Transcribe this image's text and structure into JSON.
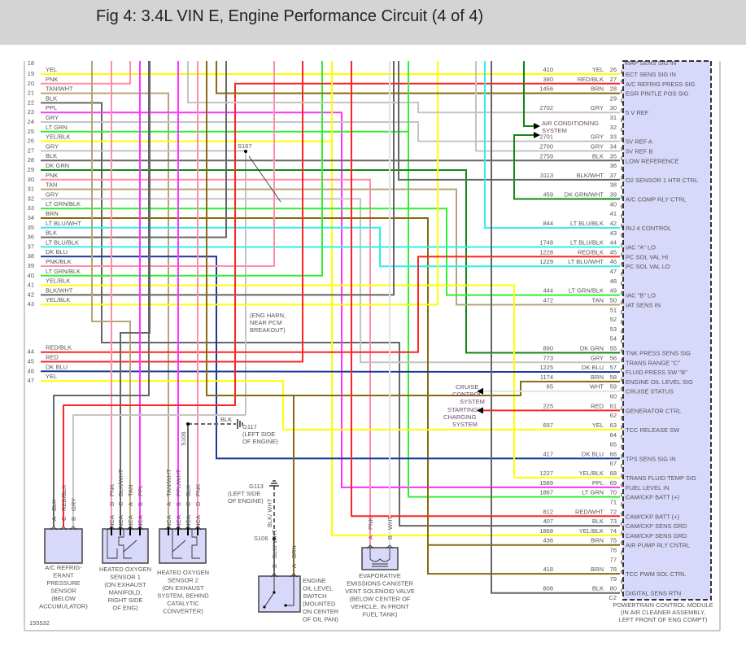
{
  "title": "Fig 4: 3.4L VIN E, Engine Performance Circuit (4 of 4)",
  "figure_id": "155532",
  "wire_colors": {
    "YEL": "#ffff00",
    "PNK": "#ff8fa8",
    "TAN": "#b5a578",
    "BLK": "#666666",
    "PPL": "#ff33ff",
    "GRY": "#c4c4c4",
    "LTGRN": "#33ee33",
    "DKGRN": "#128812",
    "RED": "#ff2424",
    "BRN": "#8a6a10",
    "LTBLU": "#33eeee",
    "DKBLU": "#1a3a9a",
    "WHT": "#e2e2e2"
  },
  "pcm_fill": "#d8d8fa",
  "left_rows_partial": "18",
  "left_rows": [
    {
      "num": "19",
      "label": "YEL"
    },
    {
      "num": "20",
      "label": "PNK"
    },
    {
      "num": "21",
      "label": "TAN/WHT"
    },
    {
      "num": "22",
      "label": "BLK"
    },
    {
      "num": "23",
      "label": "PPL"
    },
    {
      "num": "24",
      "label": "GRY"
    },
    {
      "num": "25",
      "label": "LT GRN"
    },
    {
      "num": "26",
      "label": "YEL/BLK"
    },
    {
      "num": "27",
      "label": "GRY"
    },
    {
      "num": "28",
      "label": "BLK"
    },
    {
      "num": "29",
      "label": "DK GRN"
    },
    {
      "num": "30",
      "label": "PNK"
    },
    {
      "num": "31",
      "label": "TAN"
    },
    {
      "num": "32",
      "label": "GRY"
    },
    {
      "num": "33",
      "label": "LT GRN/BLK"
    },
    {
      "num": "34",
      "label": "BRN"
    },
    {
      "num": "35",
      "label": "LT BLU/WHT"
    },
    {
      "num": "36",
      "label": "BLK"
    },
    {
      "num": "37",
      "label": "LT BLU/BLK"
    },
    {
      "num": "38",
      "label": "DK BLU"
    },
    {
      "num": "39",
      "label": "PNK/BLK"
    },
    {
      "num": "40",
      "label": "LT GRN/BLK"
    },
    {
      "num": "41",
      "label": "YEL/BLK"
    },
    {
      "num": "42",
      "label": "BLK/WHT"
    },
    {
      "num": "43",
      "label": "YEL/BLK"
    },
    {
      "num": "44",
      "label": "RED/BLK"
    },
    {
      "num": "45",
      "label": "RED"
    },
    {
      "num": "46",
      "label": "DK BLU"
    },
    {
      "num": "47",
      "label": "YEL"
    }
  ],
  "pcm": {
    "partial_top_function": "MAP SENS SIG IN",
    "connector": "C2",
    "name": "POWERTRAIN CONTROL MODULE",
    "location_lines": [
      "(IN AIR CLEANER ASSEMBLY,",
      "LEFT FRONT OF ENG COMPT)"
    ],
    "pins": [
      {
        "pin": "26",
        "circuit": "410",
        "color": "YEL",
        "function": "ECT SENS SIG IN"
      },
      {
        "pin": "27",
        "circuit": "380",
        "color": "RED/BLK",
        "function": "A/C REFRIG PRESS SIG"
      },
      {
        "pin": "28",
        "circuit": "1456",
        "color": "BRN",
        "function": "EGR PINTLE POS SIG"
      },
      {
        "pin": "29",
        "circuit": "",
        "color": "",
        "function": ""
      },
      {
        "pin": "30",
        "circuit": "2702",
        "color": "GRY",
        "function": "5 V REF"
      },
      {
        "pin": "31",
        "circuit": "",
        "color": "",
        "function": ""
      },
      {
        "pin": "32",
        "circuit": "",
        "color": "",
        "function": ""
      },
      {
        "pin": "33",
        "circuit": "2701",
        "color": "GRY",
        "function": "5V REF A"
      },
      {
        "pin": "34",
        "circuit": "2700",
        "color": "GRY",
        "function": "5V REF B"
      },
      {
        "pin": "35",
        "circuit": "2759",
        "color": "BLK",
        "function": "LOW REFERENCE"
      },
      {
        "pin": "36",
        "circuit": "",
        "color": "",
        "function": ""
      },
      {
        "pin": "37",
        "circuit": "3113",
        "color": "BLK/WHT",
        "function": "O2 SENSOR 1 HTR CTRL"
      },
      {
        "pin": "38",
        "circuit": "",
        "color": "",
        "function": ""
      },
      {
        "pin": "39",
        "circuit": "459",
        "color": "DK GRN/WHT",
        "function": "A/C COMP RLY CTRL"
      },
      {
        "pin": "40",
        "circuit": "",
        "color": "",
        "function": ""
      },
      {
        "pin": "41",
        "circuit": "",
        "color": "",
        "function": ""
      },
      {
        "pin": "42",
        "circuit": "844",
        "color": "LT BLU/BLK",
        "function": "INJ 4 CONTROL"
      },
      {
        "pin": "43",
        "circuit": "",
        "color": "",
        "function": ""
      },
      {
        "pin": "44",
        "circuit": "1748",
        "color": "LT BLU/BLK",
        "function": "IAC \"A\" LO"
      },
      {
        "pin": "45",
        "circuit": "1228",
        "color": "RED/BLK",
        "function": "PC SOL VAL HI"
      },
      {
        "pin": "46",
        "circuit": "1229",
        "color": "LT BLU/WHT",
        "function": "PC SOL VAL LO"
      },
      {
        "pin": "47",
        "circuit": "",
        "color": "",
        "function": ""
      },
      {
        "pin": "48",
        "circuit": "",
        "color": "",
        "function": ""
      },
      {
        "pin": "49",
        "circuit": "444",
        "color": "LT GRN/BLK",
        "function": "IAC \"B\" LO"
      },
      {
        "pin": "50",
        "circuit": "472",
        "color": "TAN",
        "function": "IAT SENS IN"
      },
      {
        "pin": "51",
        "circuit": "",
        "color": "",
        "function": ""
      },
      {
        "pin": "52",
        "circuit": "",
        "color": "",
        "function": ""
      },
      {
        "pin": "53",
        "circuit": "",
        "color": "",
        "function": ""
      },
      {
        "pin": "54",
        "circuit": "",
        "color": "",
        "function": ""
      },
      {
        "pin": "55",
        "circuit": "890",
        "color": "DK GRN",
        "function": "TNK PRESS SENS SIG"
      },
      {
        "pin": "56",
        "circuit": "773",
        "color": "GRY",
        "function": "TRANS RANGE \"C\""
      },
      {
        "pin": "57",
        "circuit": "1225",
        "color": "DK BLU",
        "function": "FLUID PRESS SW \"B\""
      },
      {
        "pin": "58",
        "circuit": "1174",
        "color": "BRN",
        "function": "ENGINE OIL LEVEL SIG"
      },
      {
        "pin": "59",
        "circuit": "85",
        "color": "WHT",
        "function": "CRUISE STATUS"
      },
      {
        "pin": "60",
        "circuit": "",
        "color": "",
        "function": ""
      },
      {
        "pin": "61",
        "circuit": "225",
        "color": "RED",
        "function": "GENERATOR CTRL"
      },
      {
        "pin": "62",
        "circuit": "",
        "color": "",
        "function": ""
      },
      {
        "pin": "63",
        "circuit": "657",
        "color": "YEL",
        "function": "TCC RELEASE SW"
      },
      {
        "pin": "64",
        "circuit": "",
        "color": "",
        "function": ""
      },
      {
        "pin": "65",
        "circuit": "",
        "color": "",
        "function": ""
      },
      {
        "pin": "66",
        "circuit": "417",
        "color": "DK BLU",
        "function": "TPS SENS SIG IN"
      },
      {
        "pin": "67",
        "circuit": "",
        "color": "",
        "function": ""
      },
      {
        "pin": "68",
        "circuit": "1227",
        "color": "YEL/BLK",
        "function": "TRANS FLUID TEMP SIG"
      },
      {
        "pin": "69",
        "circuit": "1589",
        "color": "PPL",
        "function": "FUEL LEVEL IN"
      },
      {
        "pin": "70",
        "circuit": "1867",
        "color": "LT GRN",
        "function": "CAM/CKP BATT (+)"
      },
      {
        "pin": "71",
        "circuit": "",
        "color": "",
        "function": ""
      },
      {
        "pin": "72",
        "circuit": "812",
        "color": "RED/WHT",
        "function": "CAM/CKP BATT (+)"
      },
      {
        "pin": "73",
        "circuit": "407",
        "color": "BLK",
        "function": "CAM/CKP SENS GRD"
      },
      {
        "pin": "74",
        "circuit": "1868",
        "color": "YEL/BLK",
        "function": "CAM/CKP SENS GRD"
      },
      {
        "pin": "75",
        "circuit": "436",
        "color": "BRN",
        "function": "AIR PUMP RLY CNTRL"
      },
      {
        "pin": "76",
        "circuit": "",
        "color": "",
        "function": ""
      },
      {
        "pin": "77",
        "circuit": "",
        "color": "",
        "function": ""
      },
      {
        "pin": "78",
        "circuit": "418",
        "color": "BRN",
        "function": "TCC PWM SOL CTRL"
      },
      {
        "pin": "79",
        "circuit": "",
        "color": "",
        "function": ""
      },
      {
        "pin": "80",
        "circuit": "808",
        "color": "BLK",
        "function": "DIGITAL SENS RTN"
      }
    ]
  },
  "arrows": {
    "air_conditioning": [
      "AIR CONDITIONING",
      "SYSTEM"
    ],
    "cruise": [
      "CRUISE",
      "CONTROL",
      "SYSTEM"
    ],
    "charging": [
      "STARTING/",
      "CHARGING",
      "SYSTEM"
    ]
  },
  "splices": {
    "s167": "S167",
    "s167_note": [
      "(ENG HARN,",
      "NEAR PCM",
      "BREAKOUT)"
    ],
    "s106_a": "S106",
    "s106_b": "S106"
  },
  "grounds": {
    "g117": {
      "wire": "BLK",
      "name": "G117",
      "location": [
        "(LEFT SIDE",
        "OF ENGINE)"
      ]
    },
    "g113": {
      "name": "G113",
      "location": [
        "(LEFT SIDE",
        "OF ENGINE)"
      ]
    }
  },
  "components": {
    "ac_sensor": {
      "pins": [
        {
          "letter": "A",
          "wire": "BLK"
        },
        {
          "letter": "C",
          "wire": "RED/BLK"
        },
        {
          "letter": "B",
          "wire": "GRY"
        }
      ],
      "label": [
        "A/C REFRIG-",
        "ERANT",
        "PRESSURE",
        "SENSOR",
        "(BELOW",
        "ACCUMULATOR)"
      ]
    },
    "o2_sensor_1": {
      "pins": [
        {
          "letter": "D",
          "wire": "PNK",
          "nca": "NCA"
        },
        {
          "letter": "C",
          "wire": "BLK/WHT",
          "nca": "NCA"
        },
        {
          "letter": "A",
          "wire": "TAN",
          "nca": "NCA"
        },
        {
          "letter": "B",
          "wire": "PPL",
          "nca": "NCA"
        }
      ],
      "label": [
        "HEATED OXYGEN",
        "SENSOR 1",
        "(ON EXHAUST",
        "MANIFOLD,",
        "RIGHT SIDE",
        "OF ENG)"
      ]
    },
    "o2_sensor_2": {
      "pins": [
        {
          "letter": "A",
          "wire": "TAN/WHT",
          "nca": "NCA"
        },
        {
          "letter": "B",
          "wire": "PPL/WHT",
          "nca": "NCA"
        },
        {
          "letter": "C",
          "wire": "BLK",
          "nca": "NCA"
        },
        {
          "letter": "D",
          "wire": "PNK",
          "nca": "NCA"
        }
      ],
      "label": [
        "HEATED OXYGEN",
        "SENSOR 2",
        "(ON EXHAUST",
        "SYSTEM, BEHIND",
        "CATALYTIC",
        "CONVERTER)"
      ]
    },
    "oil_switch": {
      "upper_wire": "BLK/ WHT",
      "pins": [
        {
          "letter": "B",
          "wire": "BLK/ WHT"
        },
        {
          "letter": "A",
          "wire": "BRN"
        }
      ],
      "label": [
        "ENGINE",
        "OIL LEVEL",
        "SWITCH",
        "(MOUNTED",
        "ON CENTER",
        "OF OIL PAN)"
      ]
    },
    "evap_valve": {
      "pins": [
        {
          "letter": "A",
          "wire": "PNK"
        },
        {
          "letter": "B",
          "wire": "WHT"
        }
      ],
      "label": [
        "EVAPORATIVE",
        "EMISSIONS CANISTER",
        "VENT SOLENOID VALVE",
        "(BELOW CENTER OF",
        "VEHICLE, IN FRONT",
        "FUEL TANK)"
      ]
    }
  }
}
